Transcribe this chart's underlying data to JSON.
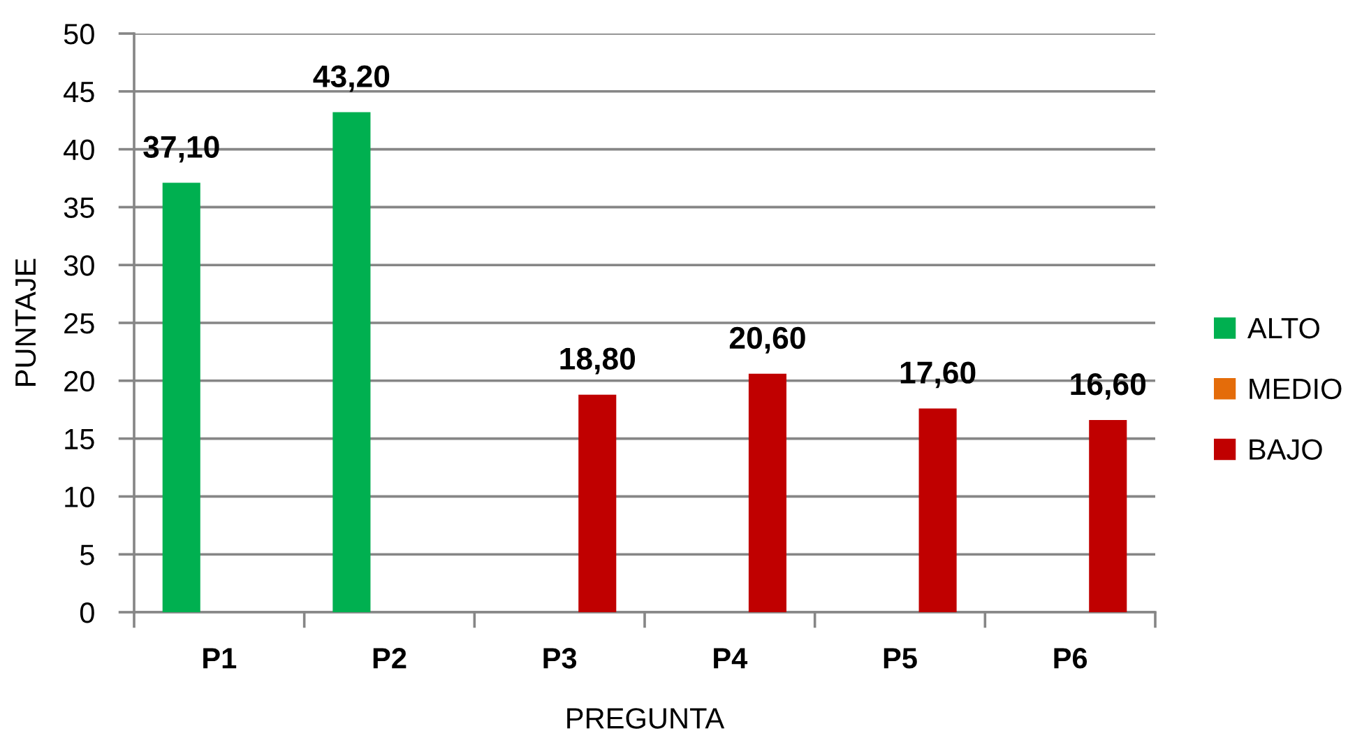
{
  "chart_data": {
    "type": "bar",
    "categories": [
      "P1",
      "P2",
      "P3",
      "P4",
      "P5",
      "P6"
    ],
    "series": [
      {
        "name": "ALTO",
        "color": "#00b050",
        "values": [
          37.1,
          43.2,
          null,
          null,
          null,
          null
        ],
        "value_labels": [
          "37,10",
          "43,20",
          null,
          null,
          null,
          null
        ]
      },
      {
        "name": "MEDIO",
        "color": "#e46c0a",
        "values": [
          null,
          null,
          null,
          null,
          null,
          null
        ]
      },
      {
        "name": "BAJO",
        "color": "#c00000",
        "values": [
          null,
          null,
          18.8,
          20.6,
          17.6,
          16.6
        ],
        "value_labels": [
          null,
          null,
          "18,80",
          "20,60",
          "17,60",
          "16,60"
        ]
      }
    ],
    "xlabel": "PREGUNTA",
    "ylabel": "PUNTAJE",
    "ylim": [
      0,
      50
    ],
    "yticks": [
      0,
      5,
      10,
      15,
      20,
      25,
      30,
      35,
      40,
      45,
      50
    ],
    "grid": "y",
    "legend": "right"
  }
}
